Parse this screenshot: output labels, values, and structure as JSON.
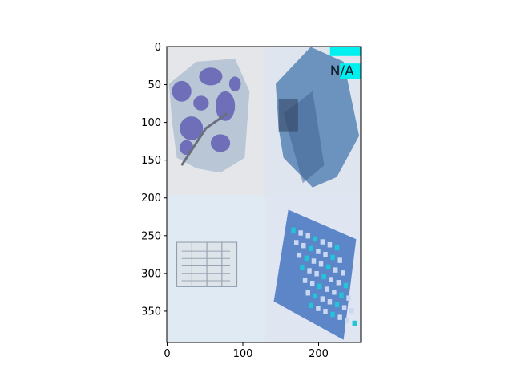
{
  "chart_data": {
    "type": "image",
    "title": "",
    "xlabel": "",
    "ylabel": "",
    "xlim": [
      -0.5,
      255.5
    ],
    "ylim": [
      391.5,
      -0.5
    ],
    "x_ticks": [
      0,
      100,
      200
    ],
    "y_ticks": [
      0,
      50,
      100,
      150,
      200,
      250,
      300,
      350
    ],
    "image_extent": {
      "x": [
        0,
        256
      ],
      "y": [
        0,
        392
      ]
    },
    "panel_grid": {
      "cols": 2,
      "rows": 2,
      "col_split": 128,
      "row_split": 196
    },
    "panels": [
      {
        "name": "crumpled-wrapper",
        "col": 0,
        "row": 0,
        "bg": "#e4e6ea",
        "main": "#5c58b2",
        "accent": "#b9c6d6"
      },
      {
        "name": "folded-blue-box",
        "col": 1,
        "row": 0,
        "bg": "#dfe5ee",
        "main": "#6c93bd",
        "accent": "#3b5f8f"
      },
      {
        "name": "folded-leaflet",
        "col": 0,
        "row": 1,
        "bg": "#dfeaf2",
        "main": "#dde4ea",
        "accent": "#8b98a8"
      },
      {
        "name": "printed-sheet",
        "col": 1,
        "row": 1,
        "bg": "#dfe6f2",
        "main": "#5d86c9",
        "accent": "#23c3d8"
      }
    ],
    "overlay_text": "N/A",
    "overlay_color": "#00f0f0"
  }
}
